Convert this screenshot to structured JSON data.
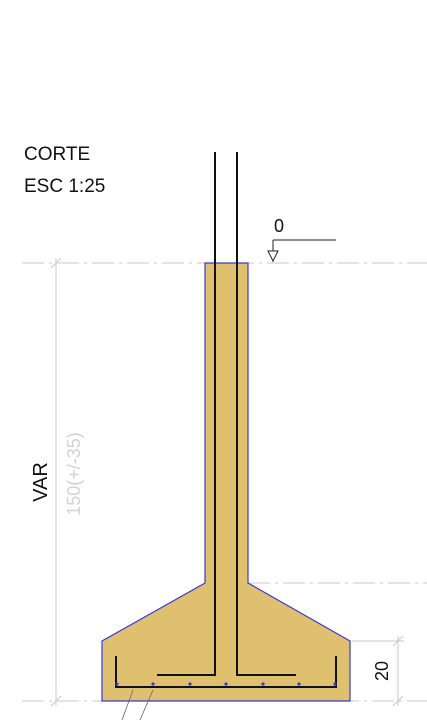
{
  "section": {
    "title": "CORTE",
    "scale": "ESC 1:25"
  },
  "level_marker": {
    "label": "0"
  },
  "dimensions": {
    "height_label": "VAR",
    "height_note": "150(+/-35)",
    "base_thickness": "20"
  },
  "colors": {
    "concrete_fill": "#dfc06e",
    "concrete_outline": "#3a3ad8",
    "rebar": "#111111",
    "axis_lines": "#c8c8c8",
    "dim_text_faint": "#d2d2d2"
  }
}
